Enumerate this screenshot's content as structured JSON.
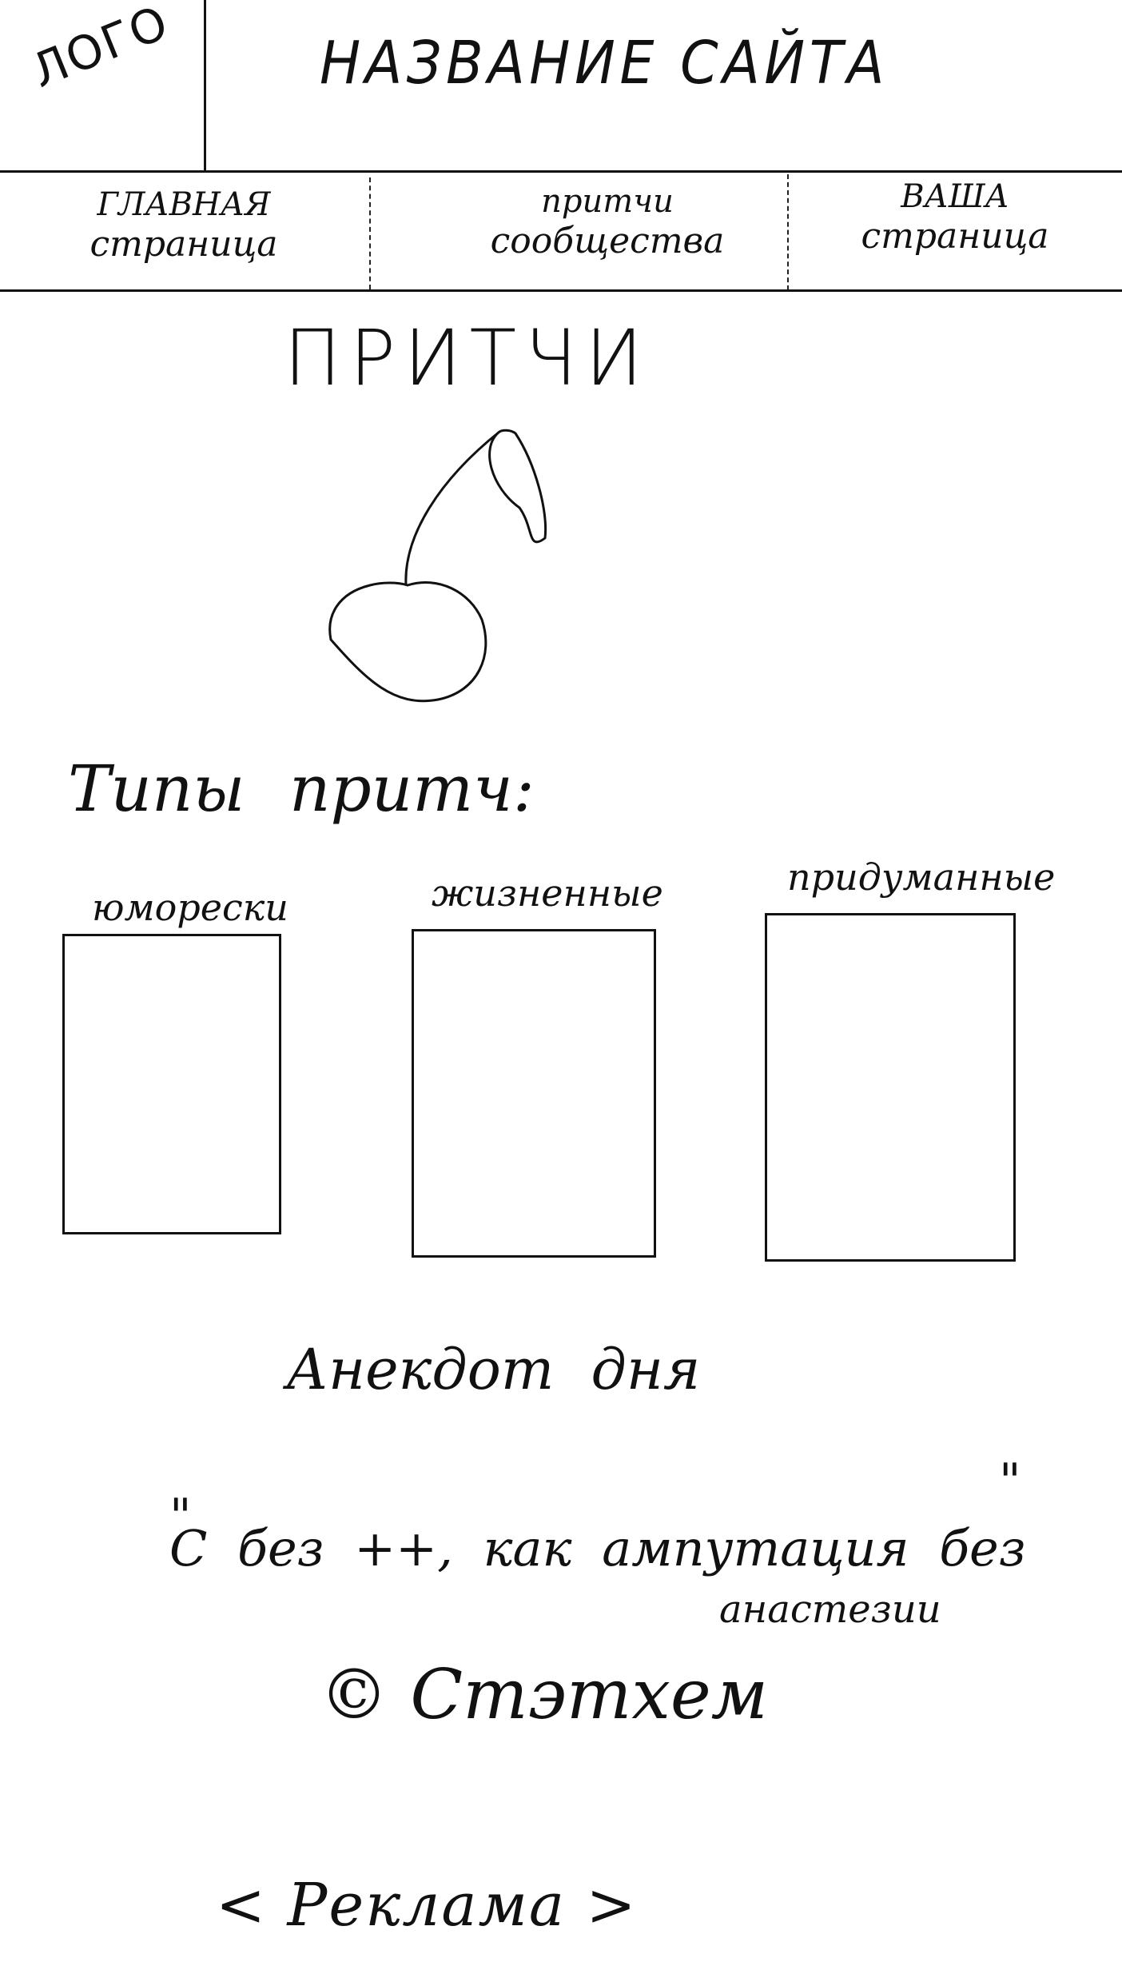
{
  "header": {
    "logo": "ЛОГО",
    "site_title": "НАЗВАНИЕ САЙТА"
  },
  "nav": {
    "items": [
      {
        "line1": "ГЛАВНАЯ",
        "line2": "страница"
      },
      {
        "line1": "притчи",
        "line2": "сообщества"
      },
      {
        "line1": "ВАША",
        "line2": "страница"
      }
    ]
  },
  "main": {
    "heading": "ПРИТЧИ",
    "types_label": "Типы притч:",
    "types": [
      {
        "label": "юморески"
      },
      {
        "label": "жизненные"
      },
      {
        "label": "придуманные"
      }
    ]
  },
  "joke": {
    "heading": "Анекдот дня",
    "open_quote": "\"",
    "quote_line": "С без ++, как ампутация без",
    "quote_tail": "анастезии",
    "close_quote": "\"",
    "author": "© Стэтхем"
  },
  "ad": {
    "label": "< Реклама >"
  },
  "colors": {
    "ink": "#111111",
    "background": "#ffffff"
  }
}
